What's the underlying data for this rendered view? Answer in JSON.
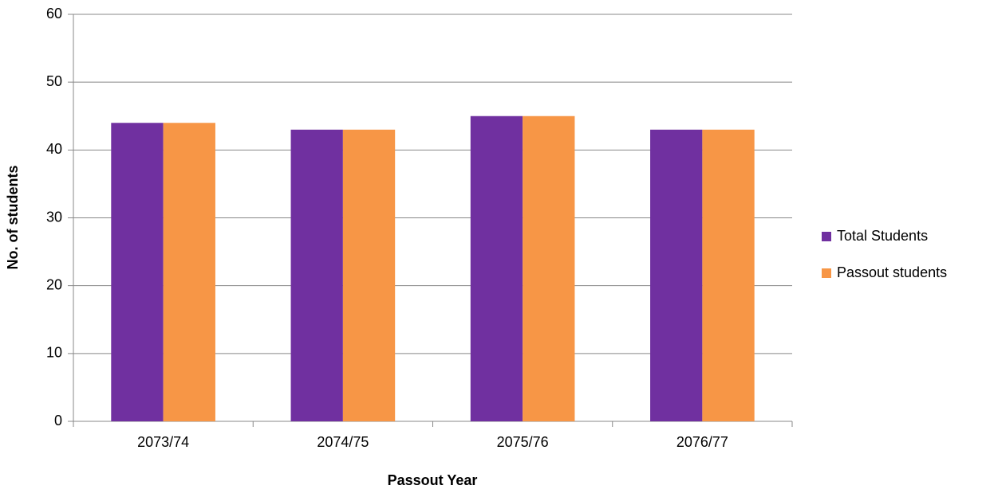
{
  "chart_data": {
    "type": "bar",
    "x_label": "Passout Year",
    "y_label": "No. of students",
    "categories": [
      "2073/74",
      "2074/75",
      "2075/76",
      "2076/77"
    ],
    "series": [
      {
        "name": "Total Students",
        "color": "#7030a0",
        "values": [
          44,
          43,
          45,
          43
        ]
      },
      {
        "name": "Passout students",
        "color": "#f79646",
        "values": [
          44,
          43,
          45,
          43
        ]
      }
    ],
    "ylim": [
      0,
      60
    ],
    "yticks": [
      0,
      10,
      20,
      30,
      40,
      50,
      60
    ],
    "grid": true,
    "legend": "right"
  }
}
